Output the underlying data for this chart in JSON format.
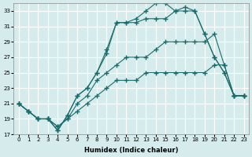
{
  "xlabel": "Humidex (Indice chaleur)",
  "ylabel": "",
  "background_color": "#d6ecec",
  "grid_color": "#ffffff",
  "line_color": "#1a6b6b",
  "xlim": [
    -0.5,
    23.5
  ],
  "ylim": [
    17,
    34
  ],
  "xticks": [
    0,
    1,
    2,
    3,
    4,
    5,
    6,
    7,
    8,
    9,
    10,
    11,
    12,
    13,
    14,
    15,
    16,
    17,
    18,
    19,
    20,
    21,
    22,
    23
  ],
  "yticks": [
    17,
    19,
    21,
    23,
    25,
    27,
    29,
    31,
    33
  ],
  "line1_x": [
    0,
    1,
    2,
    3,
    4,
    5,
    6,
    7,
    8,
    9,
    10,
    11,
    12,
    13,
    14,
    15,
    16,
    17,
    18,
    19,
    20,
    21,
    22,
    23
  ],
  "line1_y": [
    21,
    20,
    19,
    19,
    18,
    19,
    20,
    21,
    22,
    23,
    24,
    24,
    24,
    25,
    25,
    25,
    25,
    25,
    25,
    25,
    26,
    26,
    22,
    22
  ],
  "line2_x": [
    0,
    1,
    2,
    3,
    4,
    5,
    6,
    7,
    8,
    9,
    10,
    11,
    12,
    13,
    14,
    15,
    16,
    17,
    18,
    19,
    20,
    21,
    22,
    23
  ],
  "line2_y": [
    21,
    20,
    19,
    19,
    18,
    19,
    21,
    22,
    24,
    25,
    26,
    27,
    27,
    27,
    28,
    29,
    29,
    29,
    29,
    29,
    30,
    26,
    22,
    22
  ],
  "line3_x": [
    0,
    1,
    2,
    3,
    4,
    5,
    6,
    7,
    8,
    9,
    10,
    11,
    12,
    13,
    14,
    15,
    16,
    17,
    18,
    19,
    20,
    21,
    22,
    23
  ],
  "line3_y": [
    21,
    20,
    19,
    19,
    17.5,
    19.5,
    22,
    23,
    25,
    27.5,
    31.5,
    31.5,
    31.5,
    32,
    32,
    32,
    33,
    33.5,
    33,
    30,
    27,
    25,
    22,
    22
  ],
  "line4_x": [
    0,
    1,
    2,
    3,
    4,
    5,
    6,
    7,
    8,
    9,
    10,
    11,
    12,
    13,
    14,
    15,
    16,
    17,
    18,
    19,
    20,
    21,
    22,
    23
  ],
  "line4_y": [
    21,
    20,
    19,
    19,
    17.5,
    19.5,
    22,
    23,
    25,
    28,
    31.5,
    31.5,
    32,
    33,
    34,
    34,
    33,
    33,
    33,
    30,
    27,
    25,
    22,
    22
  ]
}
